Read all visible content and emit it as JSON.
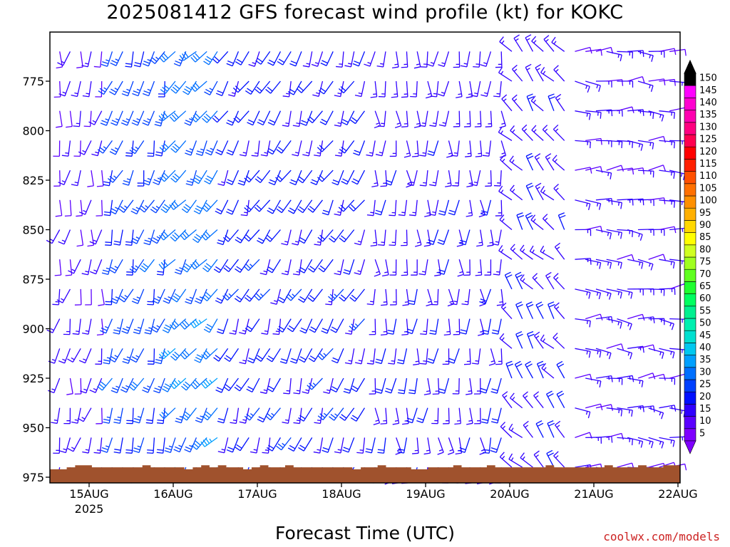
{
  "chart_data": {
    "type": "wind-barb-time-height",
    "title": "2025081412 GFS forecast wind profile (kt) for KOKC",
    "xlabel": "Forecast Time (UTC)",
    "ylabel": "",
    "credit": "coolwx.com/models",
    "x_ticks": [
      {
        "label": "15AUG",
        "sublabel": "2025",
        "day": 15
      },
      {
        "label": "16AUG",
        "day": 16
      },
      {
        "label": "17AUG",
        "day": 17
      },
      {
        "label": "18AUG",
        "day": 18
      },
      {
        "label": "19AUG",
        "day": 19
      },
      {
        "label": "20AUG",
        "day": 20
      },
      {
        "label": "21AUG",
        "day": 21
      },
      {
        "label": "22AUG",
        "day": 22
      }
    ],
    "x_range_days": [
      14.5,
      22.0
    ],
    "y_ticks": [
      775,
      800,
      825,
      850,
      875,
      900,
      925,
      950,
      975
    ],
    "y_range_hPa": [
      752,
      977
    ],
    "levels_hPa": [
      760,
      775,
      790,
      805,
      820,
      835,
      850,
      865,
      880,
      895,
      910,
      925,
      940,
      955,
      970
    ],
    "time_step_hours": 3,
    "colorbar": {
      "units": "kt",
      "labels": [
        5,
        10,
        15,
        20,
        25,
        30,
        35,
        40,
        45,
        50,
        55,
        60,
        65,
        70,
        75,
        80,
        85,
        90,
        95,
        100,
        105,
        110,
        115,
        120,
        125,
        130,
        135,
        140,
        145,
        150
      ],
      "colors": [
        "#7f00ff",
        "#5b00ff",
        "#3000ff",
        "#0010ff",
        "#0040ff",
        "#0070ff",
        "#00a0ff",
        "#00c8f0",
        "#00e0d0",
        "#00f0b0",
        "#00f090",
        "#00ff60",
        "#20ff30",
        "#60ff20",
        "#a0ff20",
        "#d0ff20",
        "#ffff00",
        "#ffd800",
        "#ffb000",
        "#ff9000",
        "#ff7000",
        "#ff5000",
        "#ff2000",
        "#ff0000",
        "#ff0050",
        "#ff0080",
        "#ff00b0",
        "#ff00d0",
        "#ff00ff",
        "#000000"
      ]
    },
    "terrain": {
      "color": "#a0522d",
      "surface_hPa": [
        971,
        971,
        970,
        969,
        969,
        970,
        970,
        970,
        970,
        970,
        970,
        969,
        970,
        970,
        970,
        970,
        971,
        970,
        969,
        970,
        969,
        970,
        970,
        971,
        970,
        969,
        970,
        970,
        969,
        970,
        970,
        970,
        970,
        970,
        970,
        970,
        971,
        970,
        970,
        969,
        970,
        970,
        970,
        971,
        971,
        970,
        970,
        970,
        969,
        970,
        970,
        970,
        969,
        970,
        970,
        970,
        970,
        970,
        970,
        969,
        970,
        970,
        970,
        970,
        970,
        970,
        969,
        970,
        970,
        970,
        969,
        970,
        970,
        969,
        969,
        968
      ]
    },
    "wind_regimes": [
      {
        "from_day": 14.5,
        "to_day": 15.2,
        "direction_deg": 190,
        "speed_kt": [
          10,
          15
        ]
      },
      {
        "from_day": 15.2,
        "to_day": 16.0,
        "direction_deg": 200,
        "speed_kt": [
          15,
          30
        ]
      },
      {
        "from_day": 16.0,
        "to_day": 16.6,
        "direction_deg": 215,
        "speed_kt": [
          20,
          35
        ]
      },
      {
        "from_day": 16.6,
        "to_day": 18.3,
        "direction_deg": 205,
        "speed_kt": [
          10,
          25
        ]
      },
      {
        "from_day": 18.3,
        "to_day": 20.0,
        "direction_deg": 180,
        "speed_kt": [
          10,
          20
        ]
      },
      {
        "from_day": 20.0,
        "to_day": 20.7,
        "direction_deg": 320,
        "speed_kt": [
          10,
          20
        ]
      },
      {
        "from_day": 20.7,
        "to_day": 22.0,
        "direction_deg": 90,
        "speed_kt": [
          10,
          15
        ]
      }
    ]
  }
}
